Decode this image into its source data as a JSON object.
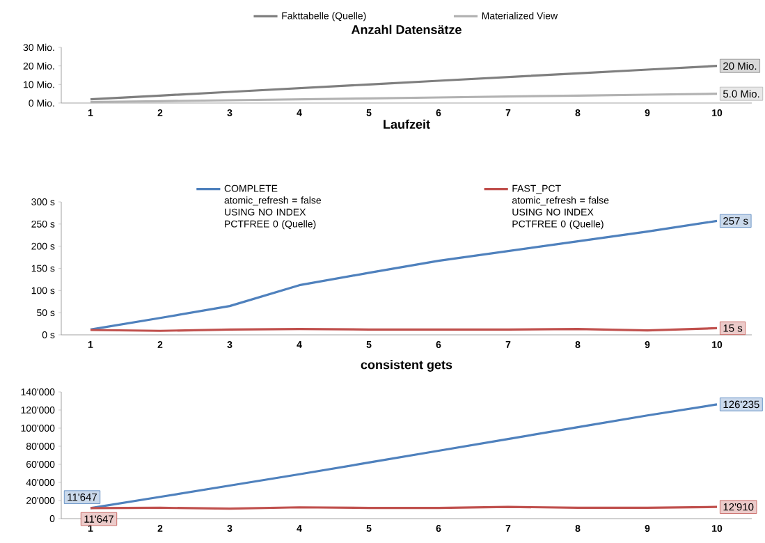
{
  "chart_data": [
    {
      "type": "line",
      "title": "Anzahl Datensätze",
      "categories": [
        "1",
        "2",
        "3",
        "4",
        "5",
        "6",
        "7",
        "8",
        "9",
        "10"
      ],
      "series": [
        {
          "name": "Fakttabelle (Quelle)",
          "color": "#7f7f7f",
          "values": [
            2,
            4,
            6,
            8,
            10,
            12,
            14,
            16,
            18,
            20
          ],
          "value_labels": [
            null,
            null,
            null,
            null,
            null,
            null,
            null,
            null,
            null,
            "20 Mio."
          ]
        },
        {
          "name": "Materialized View",
          "color": "#b2b2b2",
          "values": [
            0.5,
            1.0,
            1.5,
            2.0,
            2.5,
            3.0,
            3.5,
            4.0,
            4.5,
            5.0
          ],
          "value_labels": [
            null,
            null,
            null,
            null,
            null,
            null,
            null,
            null,
            null,
            "5.0 Mio."
          ]
        }
      ],
      "ylim": [
        0,
        30
      ],
      "yticks": [
        {
          "value": 0,
          "label": "0 Mio."
        },
        {
          "value": 10,
          "label": "10 Mio."
        },
        {
          "value": 20,
          "label": "20 Mio."
        },
        {
          "value": 30,
          "label": "30 Mio."
        }
      ],
      "legend": "top",
      "marker": "none",
      "line_style": "solid"
    },
    {
      "type": "line",
      "title": "Laufzeit",
      "categories": [
        "1",
        "2",
        "3",
        "4",
        "5",
        "6",
        "7",
        "8",
        "9",
        "10"
      ],
      "series": [
        {
          "name": "COMPLETE atomic_refresh = false USING NO INDEX PCTFREE 0 (Quelle)",
          "color": "#4f81bd",
          "values": [
            12,
            38,
            65,
            112,
            140,
            167,
            189,
            211,
            233,
            257
          ],
          "value_labels": [
            null,
            null,
            null,
            null,
            null,
            null,
            null,
            null,
            null,
            "257 s"
          ]
        },
        {
          "name": "FAST_PCT atomic_refresh = false USING NO INDEX PCTFREE 0 (Quelle)",
          "color": "#c0504d",
          "values": [
            11,
            9,
            12,
            13,
            12,
            12,
            12,
            13,
            10,
            15
          ],
          "value_labels": [
            null,
            null,
            null,
            null,
            null,
            null,
            null,
            null,
            null,
            "15 s"
          ]
        }
      ],
      "ylim": [
        0,
        300
      ],
      "yticks": [
        {
          "value": 0,
          "label": "0 s"
        },
        {
          "value": 50,
          "label": "50 s"
        },
        {
          "value": 100,
          "label": "100 s"
        },
        {
          "value": 150,
          "label": "150 s"
        },
        {
          "value": 200,
          "label": "200 s"
        },
        {
          "value": 250,
          "label": "250 s"
        },
        {
          "value": 300,
          "label": "300 s"
        }
      ],
      "legend": "top",
      "marker": "none",
      "line_style": "solid"
    },
    {
      "type": "line",
      "title": "consistent gets",
      "categories": [
        "1",
        "2",
        "3",
        "4",
        "5",
        "6",
        "7",
        "8",
        "9",
        "10"
      ],
      "series": [
        {
          "color": "#4f81bd",
          "values": [
            11647,
            24000,
            36500,
            49000,
            62000,
            75000,
            88000,
            101000,
            114000,
            126235
          ],
          "value_labels": [
            "11'647",
            null,
            null,
            null,
            null,
            null,
            null,
            null,
            null,
            "126'235"
          ]
        },
        {
          "color": "#c0504d",
          "values": [
            11647,
            12000,
            11000,
            12500,
            11800,
            11800,
            13000,
            12000,
            12000,
            12910
          ],
          "value_labels": [
            "11'647",
            null,
            null,
            null,
            null,
            null,
            null,
            null,
            null,
            "12'910"
          ]
        }
      ],
      "ylim": [
        0,
        140000
      ],
      "yticks": [
        0,
        {
          "value": 20000,
          "label": "20'000"
        },
        {
          "value": 40000,
          "label": "40'000"
        },
        {
          "value": 60000,
          "label": "60'000"
        },
        {
          "value": 80000,
          "label": "80'000"
        },
        {
          "value": 100000,
          "label": "100'000"
        },
        {
          "value": 120000,
          "label": "120'000"
        },
        {
          "value": 140000,
          "label": "140'000"
        }
      ],
      "marker": "none",
      "line_style": "solid"
    }
  ]
}
